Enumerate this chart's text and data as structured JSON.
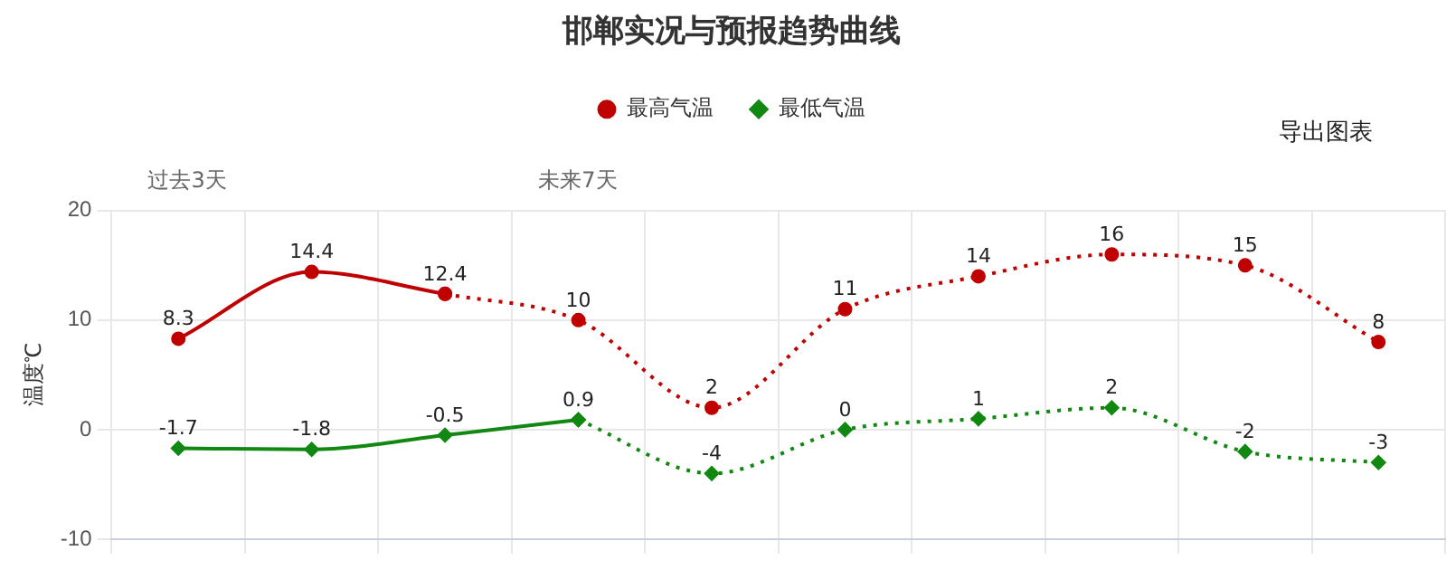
{
  "chart_data": {
    "type": "line",
    "title": "邯郸实况与预报趋势曲线",
    "ylabel": "温度℃",
    "categories": [
      null,
      null,
      null,
      null,
      null,
      null,
      null,
      null,
      null,
      null
    ],
    "series": [
      {
        "name": "最高气温",
        "color": "#c00000",
        "marker": "circle",
        "line_style": "solid",
        "values": [
          8.3,
          14.4,
          12.4,
          null,
          null,
          null,
          null,
          null,
          null,
          null
        ],
        "value_labels": [
          "8.3",
          "14.4",
          "12.4",
          null,
          null,
          null,
          null,
          null,
          null,
          null
        ]
      },
      {
        "color": "#c00000",
        "marker": "circle",
        "line_style": "dotted",
        "values": [
          null,
          null,
          12.4,
          10,
          2,
          11,
          14,
          16,
          15,
          8
        ],
        "value_labels": [
          null,
          null,
          null,
          "10",
          "2",
          "11",
          "14",
          "16",
          "15",
          "8"
        ]
      },
      {
        "name": "最低气温",
        "color": "#118811",
        "marker": "diamond",
        "line_style": "solid",
        "values": [
          -1.7,
          -1.8,
          -0.5,
          0.9,
          null,
          null,
          null,
          null,
          null,
          null
        ],
        "value_labels": [
          "-1.7",
          "-1.8",
          "-0.5",
          "0.9",
          null,
          null,
          null,
          null,
          null,
          null
        ]
      },
      {
        "color": "#118811",
        "marker": "diamond",
        "line_style": "dotted",
        "values": [
          null,
          null,
          null,
          0.9,
          -4,
          0,
          1,
          2,
          -2,
          -3
        ],
        "value_labels": [
          null,
          null,
          null,
          null,
          "-4",
          "0",
          "1",
          "2",
          "-2",
          "-3"
        ]
      }
    ],
    "ylim": [
      -10,
      20
    ],
    "yticks": [
      -10,
      0,
      10,
      20
    ],
    "grid": true,
    "legend": "top",
    "tick_labels": "y",
    "annotations": [
      "过去3天",
      "未来7天",
      "导出图表"
    ]
  }
}
